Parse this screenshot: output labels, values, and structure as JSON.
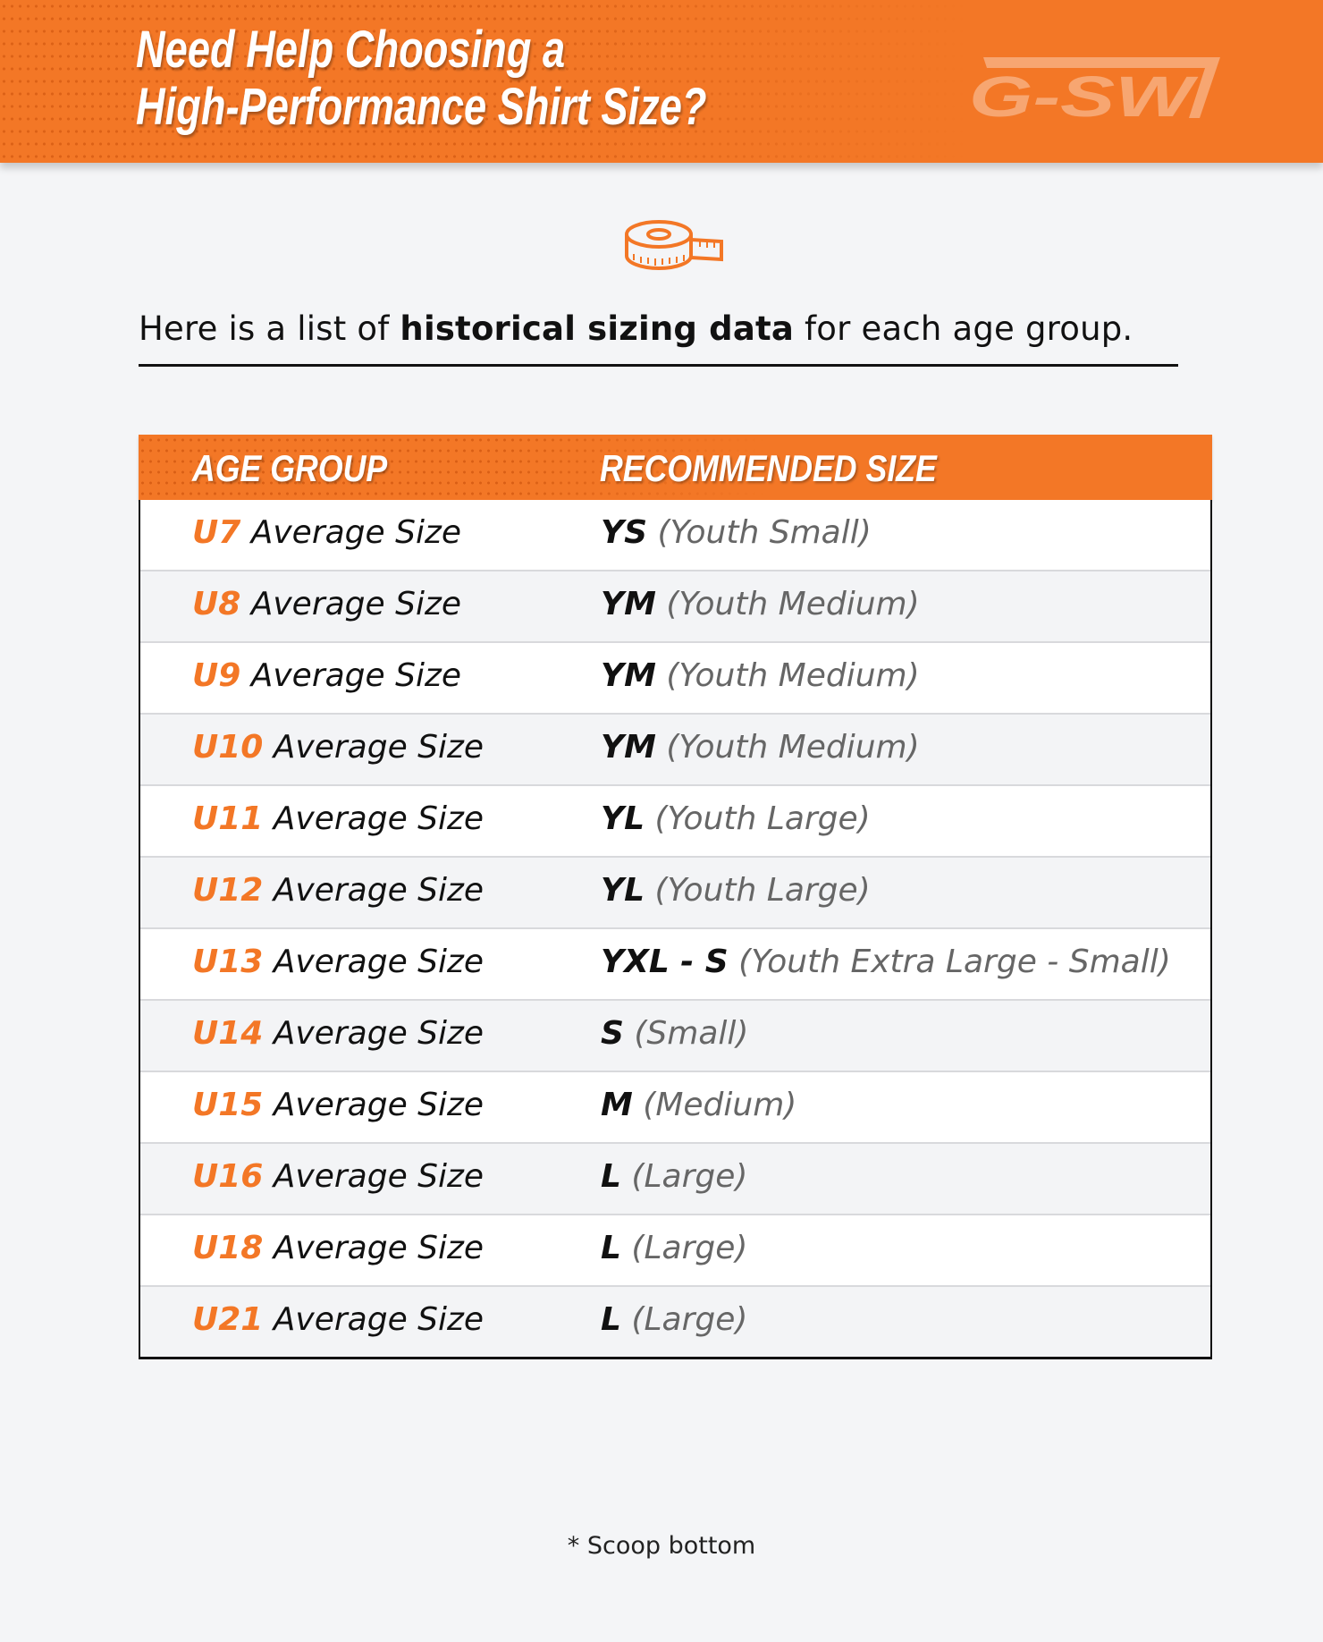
{
  "header": {
    "title_line1": "Need Help Choosing a",
    "title_line2": "High-Performance Shirt Size?",
    "logo_text": "G-SW",
    "brand_color": "#f37726"
  },
  "icon": "measuring-tape-icon",
  "intro": {
    "before": "Here is a list of ",
    "bold": "historical sizing data",
    "after": " for each age group."
  },
  "table": {
    "headers": [
      "AGE GROUP",
      "RECOMMENDED SIZE"
    ],
    "rows": [
      {
        "age": "U7",
        "age_suffix": "Average Size",
        "size": "YS",
        "size_desc": "(Youth Small)"
      },
      {
        "age": "U8",
        "age_suffix": "Average Size",
        "size": "YM",
        "size_desc": "(Youth Medium)"
      },
      {
        "age": "U9",
        "age_suffix": "Average Size",
        "size": "YM",
        "size_desc": "(Youth Medium)"
      },
      {
        "age": "U10",
        "age_suffix": "Average Size",
        "size": "YM",
        "size_desc": "(Youth Medium)"
      },
      {
        "age": "U11",
        "age_suffix": "Average Size",
        "size": "YL",
        "size_desc": "(Youth Large)"
      },
      {
        "age": "U12",
        "age_suffix": "Average Size",
        "size": "YL",
        "size_desc": "(Youth Large)"
      },
      {
        "age": "U13",
        "age_suffix": "Average Size",
        "size": "YXL - S",
        "size_desc": "(Youth Extra Large - Small)"
      },
      {
        "age": "U14",
        "age_suffix": "Average Size",
        "size": "S",
        "size_desc": "(Small)"
      },
      {
        "age": "U15",
        "age_suffix": "Average Size",
        "size": "M",
        "size_desc": "(Medium)"
      },
      {
        "age": "U16",
        "age_suffix": "Average Size",
        "size": "L",
        "size_desc": "(Large)"
      },
      {
        "age": "U18",
        "age_suffix": "Average Size",
        "size": "L",
        "size_desc": "(Large)"
      },
      {
        "age": "U21",
        "age_suffix": "Average Size",
        "size": "L",
        "size_desc": "(Large)"
      }
    ]
  },
  "footer": {
    "note": "* Scoop bottom"
  }
}
